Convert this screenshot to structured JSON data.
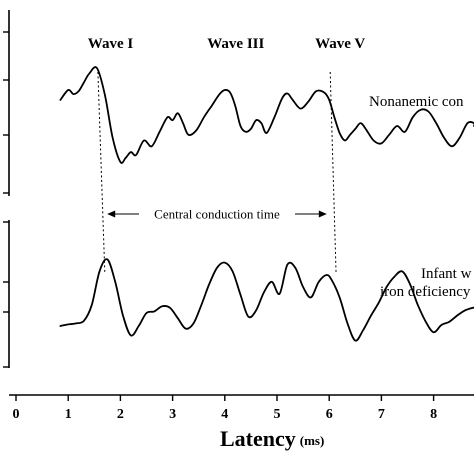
{
  "chart_data": {
    "type": "line",
    "xlabel": "Latency",
    "xlabel_unit": "(ms)",
    "xlim": [
      0,
      9.0
    ],
    "x_ticks": [
      "0",
      "1",
      "2",
      "3",
      "4",
      "5",
      "6",
      "7",
      "8"
    ],
    "wave_labels": [
      {
        "text": "Wave I",
        "x": 1.6
      },
      {
        "text": "Wave III",
        "x": 4.0
      },
      {
        "text": "Wave V",
        "x": 6.0
      }
    ],
    "interval_label": "Central conduction time",
    "interval": {
      "from": 1.67,
      "to": 6.05
    },
    "series": [
      {
        "name": "Nonanemic con",
        "x": [
          0.85,
          1.0,
          1.1,
          1.2,
          1.3,
          1.4,
          1.55,
          1.7,
          1.85,
          2.0,
          2.1,
          2.2,
          2.3,
          2.45,
          2.6,
          2.75,
          2.9,
          3.0,
          3.1,
          3.2,
          3.3,
          3.45,
          3.6,
          3.75,
          3.9,
          4.0,
          4.1,
          4.2,
          4.3,
          4.4,
          4.5,
          4.6,
          4.7,
          4.8,
          4.95,
          5.1,
          5.2,
          5.3,
          5.45,
          5.6,
          5.75,
          5.9,
          6.0,
          6.1,
          6.2,
          6.3,
          6.4,
          6.5,
          6.6,
          6.7,
          6.85,
          7.0,
          7.15,
          7.3,
          7.45,
          7.6,
          7.75,
          7.9,
          8.05,
          8.2,
          8.35,
          8.5,
          8.65,
          8.8,
          9.0
        ],
        "y": [
          0.45,
          0.62,
          0.55,
          0.6,
          0.75,
          0.9,
          1.0,
          0.55,
          -0.2,
          -0.62,
          -0.55,
          -0.45,
          -0.5,
          -0.25,
          -0.35,
          -0.1,
          0.15,
          0.1,
          0.22,
          0.05,
          -0.15,
          -0.08,
          0.15,
          0.35,
          0.55,
          0.62,
          0.58,
          0.35,
          0.0,
          -0.1,
          -0.05,
          0.1,
          0.05,
          -0.12,
          0.15,
          0.48,
          0.56,
          0.45,
          0.3,
          0.42,
          0.6,
          0.58,
          0.45,
          0.15,
          -0.12,
          -0.25,
          -0.15,
          -0.05,
          0.05,
          -0.05,
          -0.25,
          -0.3,
          -0.15,
          0.0,
          -0.1,
          0.15,
          0.28,
          0.25,
          0.05,
          -0.2,
          -0.35,
          -0.2,
          0.05,
          0.05,
          0.0
        ]
      },
      {
        "name": "Infant w… iron deficiency",
        "x": [
          0.85,
          1.0,
          1.15,
          1.3,
          1.45,
          1.6,
          1.75,
          1.9,
          2.05,
          2.2,
          2.35,
          2.5,
          2.65,
          2.8,
          2.95,
          3.1,
          3.25,
          3.4,
          3.55,
          3.7,
          3.85,
          4.0,
          4.15,
          4.3,
          4.45,
          4.6,
          4.75,
          4.9,
          5.05,
          5.2,
          5.35,
          5.5,
          5.65,
          5.8,
          5.95,
          6.05,
          6.2,
          6.35,
          6.5,
          6.65,
          6.8,
          6.95,
          7.1,
          7.25,
          7.4,
          7.55,
          7.7,
          7.85,
          8.0,
          8.15,
          8.3,
          8.45,
          8.6,
          8.75,
          9.0
        ],
        "y": [
          -0.5,
          -0.47,
          -0.45,
          -0.4,
          -0.1,
          0.55,
          0.78,
          0.35,
          -0.3,
          -0.68,
          -0.5,
          -0.25,
          -0.22,
          -0.12,
          -0.15,
          -0.35,
          -0.55,
          -0.45,
          -0.1,
          0.3,
          0.62,
          0.72,
          0.55,
          0.1,
          -0.32,
          -0.2,
          0.15,
          0.35,
          0.12,
          0.68,
          0.62,
          0.25,
          0.05,
          0.35,
          0.48,
          0.38,
          0.05,
          -0.45,
          -0.78,
          -0.58,
          -0.3,
          -0.05,
          0.25,
          0.45,
          0.55,
          0.3,
          -0.1,
          -0.42,
          -0.62,
          -0.48,
          -0.42,
          -0.3,
          -0.2,
          -0.15,
          -0.15
        ]
      }
    ]
  }
}
